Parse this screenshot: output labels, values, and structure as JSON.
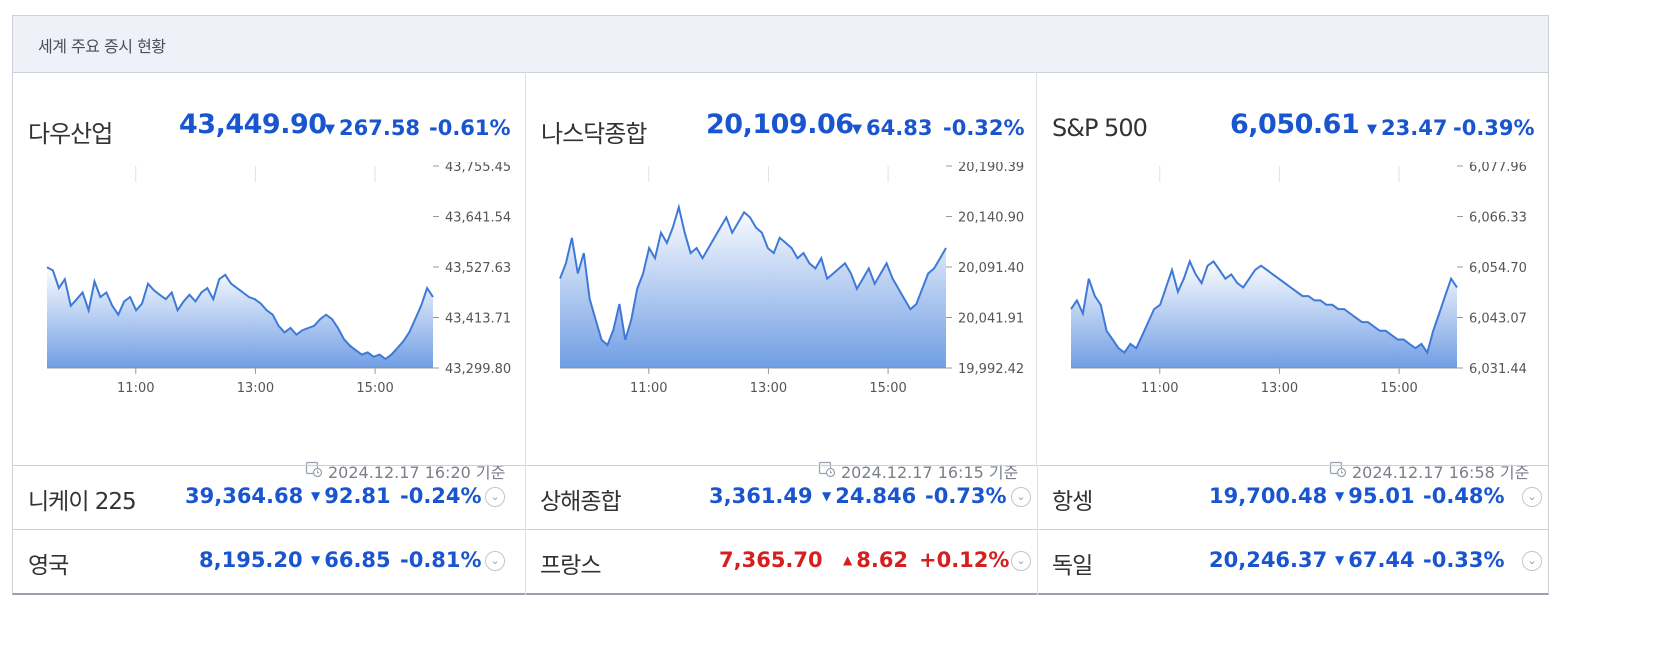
{
  "header": {
    "title": "세계 주요 증시 현황"
  },
  "panels": [
    {
      "name": "다우산업",
      "value": "43,449.90",
      "change": "267.58",
      "pct": "-0.61%",
      "direction": "down",
      "yticks": [
        "43,755.45",
        "43,641.54",
        "43,527.63",
        "43,413.71",
        "43,299.80"
      ],
      "xticks": [
        "11:00",
        "13:00",
        "15:00"
      ],
      "timestamp": "2024.12.17 16:20 기준",
      "ylim": [
        43299.8,
        43755.45
      ],
      "series": [
        43527,
        43520,
        43480,
        43500,
        43440,
        43455,
        43470,
        43430,
        43495,
        43460,
        43470,
        43440,
        43420,
        43450,
        43460,
        43430,
        43445,
        43490,
        43475,
        43465,
        43455,
        43470,
        43430,
        43450,
        43465,
        43450,
        43470,
        43480,
        43455,
        43500,
        43510,
        43490,
        43480,
        43470,
        43460,
        43455,
        43445,
        43430,
        43420,
        43395,
        43380,
        43390,
        43375,
        43385,
        43390,
        43395,
        43410,
        43420,
        43410,
        43390,
        43365,
        43350,
        43340,
        43330,
        43335,
        43325,
        43330,
        43320,
        43330,
        43345,
        43360,
        43380,
        43410,
        43440,
        43480,
        43460
      ]
    },
    {
      "name": "나스닥종합",
      "value": "20,109.06",
      "change": "64.83",
      "pct": "-0.32%",
      "direction": "down",
      "yticks": [
        "20,190.39",
        "20,140.90",
        "20,091.40",
        "20,041.91",
        "19,992.42"
      ],
      "xticks": [
        "11:00",
        "13:00",
        "15:00"
      ],
      "timestamp": "2024.12.17 16:15 기준",
      "ylim": [
        19992.42,
        20190.39
      ],
      "series": [
        20080,
        20095,
        20120,
        20085,
        20105,
        20060,
        20040,
        20020,
        20015,
        20030,
        20055,
        20020,
        20040,
        20070,
        20085,
        20110,
        20100,
        20125,
        20115,
        20130,
        20150,
        20125,
        20105,
        20110,
        20100,
        20110,
        20120,
        20130,
        20140,
        20125,
        20135,
        20145,
        20140,
        20130,
        20125,
        20110,
        20105,
        20120,
        20115,
        20110,
        20100,
        20105,
        20095,
        20090,
        20100,
        20080,
        20085,
        20090,
        20095,
        20085,
        20070,
        20080,
        20090,
        20075,
        20085,
        20095,
        20080,
        20070,
        20060,
        20050,
        20055,
        20070,
        20085,
        20090,
        20100,
        20110
      ]
    },
    {
      "name": "S&P 500",
      "value": "6,050.61",
      "change": "23.47",
      "pct": "-0.39%",
      "direction": "down",
      "yticks": [
        "6,077.96",
        "6,066.33",
        "6,054.70",
        "6,043.07",
        "6,031.44"
      ],
      "xticks": [
        "11:00",
        "13:00",
        "15:00"
      ],
      "timestamp": "2024.12.17 16:58 기준",
      "ylim": [
        6031.44,
        6077.96
      ],
      "series": [
        6045,
        6047,
        6044,
        6052,
        6048,
        6046,
        6040,
        6038,
        6036,
        6035,
        6037,
        6036,
        6039,
        6042,
        6045,
        6046,
        6050,
        6054,
        6049,
        6052,
        6056,
        6053,
        6051,
        6055,
        6056,
        6054,
        6052,
        6053,
        6051,
        6050,
        6052,
        6054,
        6055,
        6054,
        6053,
        6052,
        6051,
        6050,
        6049,
        6048,
        6048,
        6047,
        6047,
        6046,
        6046,
        6045,
        6045,
        6044,
        6043,
        6042,
        6042,
        6041,
        6040,
        6040,
        6039,
        6038,
        6038,
        6037,
        6036,
        6037,
        6035,
        6040,
        6044,
        6048,
        6052,
        6050
      ]
    }
  ],
  "markets": [
    {
      "name": "니케이 225",
      "value": "39,364.68",
      "change": "92.81",
      "pct": "-0.24%",
      "direction": "down"
    },
    {
      "name": "상해종합",
      "value": "3,361.49",
      "change": "24.846",
      "pct": "-0.73%",
      "direction": "down"
    },
    {
      "name": "항셍",
      "value": "19,700.48",
      "change": "95.01",
      "pct": "-0.48%",
      "direction": "down"
    },
    {
      "name": "영국",
      "value": "8,195.20",
      "change": "66.85",
      "pct": "-0.81%",
      "direction": "down"
    },
    {
      "name": "프랑스",
      "value": "7,365.70",
      "change": "8.62",
      "pct": "+0.12%",
      "direction": "up"
    },
    {
      "name": "독일",
      "value": "20,246.37",
      "change": "67.44",
      "pct": "-0.33%",
      "direction": "down"
    }
  ],
  "colors": {
    "down": "#1a55d0",
    "up": "#d62020",
    "line": "#3f79d8",
    "header_bg": "#eef1f7"
  },
  "icons": {
    "down": "▼",
    "up": "▲",
    "expand": "chevron-down-icon",
    "timestamp": "calendar-clock-icon"
  }
}
